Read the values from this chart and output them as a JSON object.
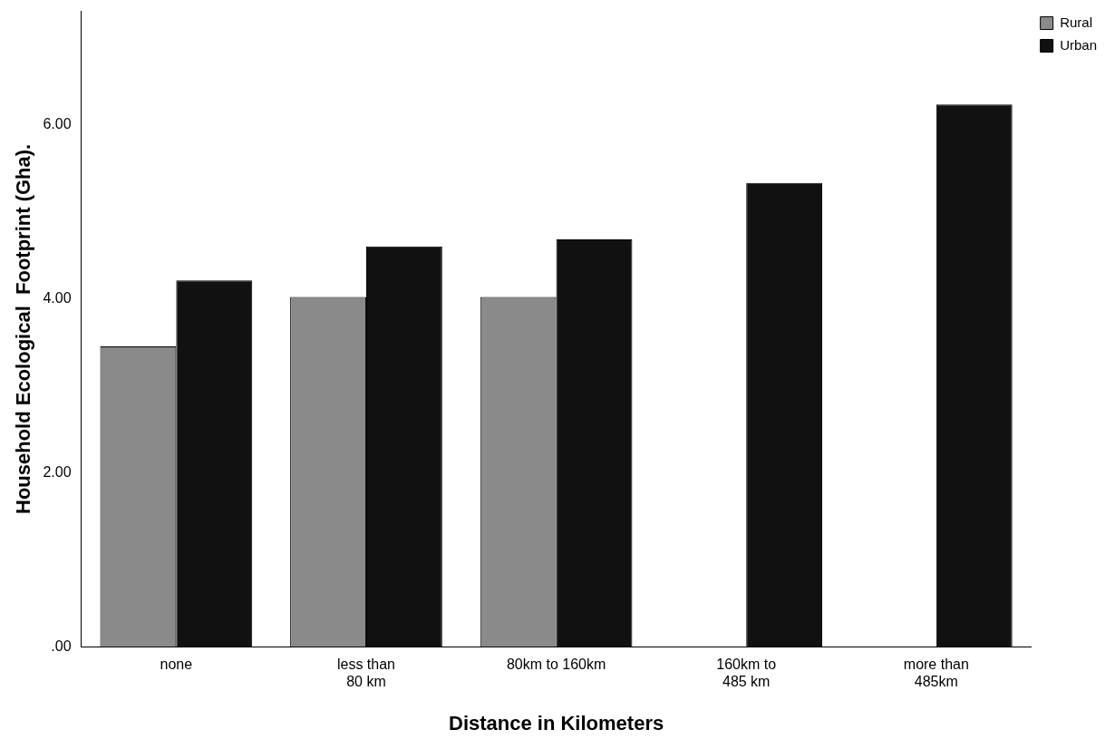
{
  "chart_data": {
    "type": "bar",
    "xlabel": "Distance in Kilometers",
    "ylabel": "Household Ecological  Footprint (Gha).",
    "categories": [
      "none",
      "less than 80 km",
      "80km to 160km",
      "160km  to 485 km",
      "more than 485km"
    ],
    "series": [
      {
        "name": "Rural",
        "color": "#8a8a8a",
        "values": [
          3.45,
          4.02,
          4.02,
          null,
          null
        ]
      },
      {
        "name": "Urban",
        "color": "#111111",
        "values": [
          4.21,
          4.6,
          4.68,
          5.33,
          6.23
        ]
      }
    ],
    "ylim": [
      0,
      7.3
    ],
    "yticks": [
      {
        "value": 0,
        "label": ".00"
      },
      {
        "value": 2,
        "label": "2.00"
      },
      {
        "value": 4,
        "label": "4.00"
      },
      {
        "value": 6,
        "label": "6.00"
      }
    ],
    "grid": false,
    "legend": "top right"
  }
}
